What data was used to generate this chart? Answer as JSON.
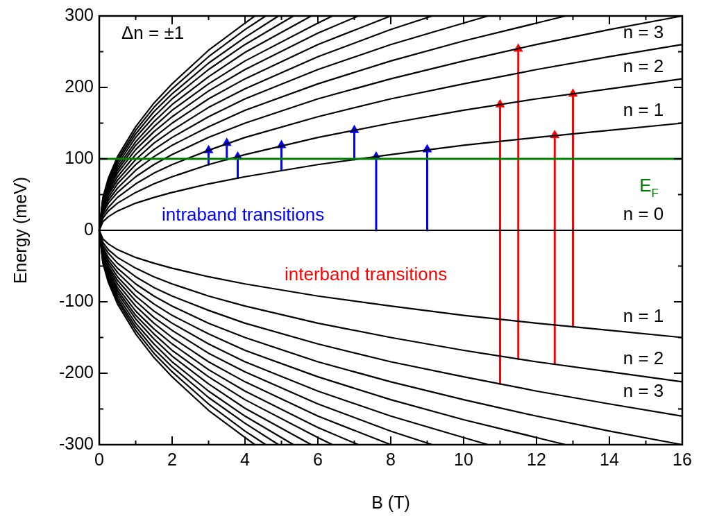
{
  "chart_data": {
    "type": "line",
    "xlabel": "B (T)",
    "ylabel": "Energy (meV)",
    "xlim": [
      0,
      16
    ],
    "ylim": [
      -300,
      300
    ],
    "xticks": [
      0,
      2,
      4,
      6,
      8,
      10,
      12,
      14,
      16
    ],
    "yticks": [
      -300,
      -200,
      -100,
      0,
      100,
      200,
      300
    ],
    "grid": false,
    "legend": false,
    "marker": "none",
    "line_style": "solid",
    "ref_lines": [
      {
        "axis": "y",
        "value": 100,
        "label": "E$_{F}$",
        "color": "#008000"
      }
    ],
    "annotations": [
      "Δn = ±1",
      "intraband transitions",
      "interband transitions",
      "n = 3",
      "n = 2",
      "n = 1",
      "n = 0",
      "n = 1",
      "n = 2",
      "n = 3"
    ],
    "series": [
      {
        "color": "#000000",
        "x": [
          0,
          16
        ],
        "values": [
          0,
          0
        ]
      },
      {
        "color": "#000000",
        "x": [
          16,
          14,
          12,
          10,
          8,
          6,
          4,
          3,
          2,
          1.5,
          1,
          0.5,
          0.25,
          0.1,
          0,
          0.1,
          0.25,
          0.5,
          1,
          1.5,
          2,
          3,
          4,
          6,
          8,
          10,
          12,
          14,
          16
        ],
        "values": [
          150,
          140,
          130,
          119,
          106,
          92,
          75,
          65,
          53,
          46,
          38,
          27,
          19,
          12,
          0,
          -12,
          -19,
          -27,
          -38,
          -46,
          -53,
          -65,
          -75,
          -92,
          -106,
          -119,
          -130,
          -140,
          -150
        ]
      },
      {
        "color": "#000000",
        "x": [
          16,
          14,
          12,
          10,
          8,
          6,
          4,
          3,
          2,
          1.5,
          1,
          0.5,
          0.25,
          0.1,
          0,
          0.1,
          0.25,
          0.5,
          1,
          1.5,
          2,
          3,
          4,
          6,
          8,
          10,
          12,
          14,
          16
        ],
        "values": [
          212,
          198,
          184,
          168,
          150,
          130,
          106,
          92,
          75,
          65,
          53,
          38,
          27,
          17,
          0,
          -17,
          -27,
          -38,
          -53,
          -65,
          -75,
          -92,
          -106,
          -130,
          -150,
          -168,
          -184,
          -198,
          -212
        ]
      },
      {
        "color": "#000000",
        "x": [
          16,
          14,
          12,
          10,
          8,
          6,
          4,
          3,
          2,
          1.5,
          1,
          0.5,
          0.25,
          0.1,
          0,
          0.1,
          0.25,
          0.5,
          1,
          1.5,
          2,
          3,
          4,
          6,
          8,
          10,
          12,
          14,
          16
        ],
        "values": [
          260,
          243,
          225,
          205,
          184,
          159,
          130,
          112,
          92,
          80,
          65,
          46,
          32,
          21,
          0,
          -21,
          -32,
          -46,
          -65,
          -80,
          -92,
          -112,
          -130,
          -159,
          -184,
          -205,
          -225,
          -243,
          -260
        ]
      },
      {
        "color": "#000000",
        "x": [
          16,
          14,
          12,
          10,
          8,
          6,
          4,
          3,
          2,
          1.5,
          1,
          0.5,
          0.25,
          0.1,
          0,
          0.1,
          0.25,
          0.5,
          1,
          1.5,
          2,
          3,
          4,
          6,
          8,
          10,
          12,
          14,
          16
        ],
        "values": [
          300,
          281,
          260,
          237,
          212,
          184,
          150,
          130,
          106,
          92,
          75,
          53,
          38,
          24,
          0,
          -24,
          -38,
          -53,
          -75,
          -92,
          -106,
          -130,
          -150,
          -184,
          -212,
          -237,
          -260,
          -281,
          -300
        ]
      },
      {
        "color": "#000000",
        "x": [
          12.8,
          12,
          10,
          8,
          6,
          4,
          3,
          2,
          1.5,
          1,
          0.5,
          0.25,
          0.1,
          0,
          0.1,
          0.25,
          0.5,
          1,
          1.5,
          2,
          3,
          4,
          6,
          8,
          10,
          12,
          12.8
        ],
        "values": [
          300,
          290,
          265,
          237,
          205,
          168,
          145,
          119,
          103,
          84,
          59,
          42,
          27,
          0,
          -27,
          -42,
          -59,
          -84,
          -103,
          -119,
          -145,
          -168,
          -205,
          -237,
          -265,
          -290,
          -300
        ]
      },
      {
        "color": "#000000",
        "x": [
          10.67,
          10,
          8,
          6,
          4,
          3,
          2,
          1.5,
          1,
          0.5,
          0.25,
          0.1,
          0,
          0.1,
          0.25,
          0.5,
          1,
          1.5,
          2,
          3,
          4,
          6,
          8,
          10,
          10.67
        ],
        "values": [
          300,
          290,
          260,
          225,
          184,
          159,
          130,
          113,
          92,
          65,
          46,
          29,
          0,
          -29,
          -46,
          -65,
          -92,
          -113,
          -130,
          -159,
          -184,
          -225,
          -260,
          -290,
          -300
        ]
      },
      {
        "color": "#000000",
        "x": [
          9.14,
          8,
          6,
          4,
          3,
          2,
          1.5,
          1,
          0.5,
          0.25,
          0.1,
          0,
          0.1,
          0.25,
          0.5,
          1,
          1.5,
          2,
          3,
          4,
          6,
          8,
          9.14
        ],
        "values": [
          300,
          281,
          243,
          198,
          172,
          140,
          122,
          99,
          70,
          50,
          31,
          0,
          -31,
          -50,
          -70,
          -99,
          -122,
          -140,
          -172,
          -198,
          -243,
          -281,
          -300
        ]
      },
      {
        "color": "#000000",
        "x": [
          8,
          6,
          4,
          3,
          2,
          1.5,
          1,
          0.5,
          0.25,
          0.1,
          0,
          0.1,
          0.25,
          0.5,
          1,
          1.5,
          2,
          3,
          4,
          6,
          8
        ],
        "values": [
          300,
          260,
          212,
          184,
          150,
          130,
          106,
          75,
          53,
          34,
          0,
          -34,
          -53,
          -75,
          -106,
          -130,
          -150,
          -184,
          -212,
          -260,
          -300
        ]
      },
      {
        "color": "#000000",
        "x": [
          7.11,
          6,
          4,
          3,
          2,
          1.5,
          1,
          0.5,
          0.25,
          0.1,
          0,
          0.1,
          0.25,
          0.5,
          1,
          1.5,
          2,
          3,
          4,
          6,
          7.11
        ],
        "values": [
          300,
          276,
          225,
          195,
          159,
          138,
          113,
          80,
          56,
          36,
          0,
          -36,
          -56,
          -80,
          -113,
          -138,
          -159,
          -195,
          -225,
          -276,
          -300
        ]
      },
      {
        "color": "#000000",
        "x": [
          6.4,
          6,
          4,
          3,
          2,
          1.5,
          1,
          0.5,
          0.25,
          0.1,
          0,
          0.1,
          0.25,
          0.5,
          1,
          1.5,
          2,
          3,
          4,
          6,
          6.4
        ],
        "values": [
          300,
          290,
          237,
          205,
          168,
          145,
          119,
          84,
          59,
          38,
          0,
          -38,
          -59,
          -84,
          -119,
          -145,
          -168,
          -205,
          -237,
          -290,
          -300
        ]
      },
      {
        "color": "#000000",
        "x": [
          5.82,
          4,
          3,
          2,
          1.5,
          1,
          0.5,
          0.25,
          0.1,
          0,
          0.1,
          0.25,
          0.5,
          1,
          1.5,
          2,
          3,
          4,
          5.82
        ],
        "values": [
          300,
          249,
          215,
          176,
          152,
          124,
          88,
          62,
          39,
          0,
          -39,
          -62,
          -88,
          -124,
          -152,
          -176,
          -215,
          -249,
          -300
        ]
      },
      {
        "color": "#000000",
        "x": [
          5.33,
          4,
          3,
          2,
          1.5,
          1,
          0.5,
          0.25,
          0.1,
          0,
          0.1,
          0.25,
          0.5,
          1,
          1.5,
          2,
          3,
          4,
          5.33
        ],
        "values": [
          300,
          260,
          225,
          184,
          159,
          130,
          92,
          65,
          41,
          0,
          -41,
          -65,
          -92,
          -130,
          -159,
          -184,
          -225,
          -260,
          -300
        ]
      },
      {
        "color": "#000000",
        "x": [
          4.92,
          4,
          3,
          2,
          1.5,
          1,
          0.5,
          0.25,
          0.1,
          0,
          0.1,
          0.25,
          0.5,
          1,
          1.5,
          2,
          3,
          4,
          4.92
        ],
        "values": [
          300,
          270,
          234,
          191,
          166,
          135,
          96,
          68,
          43,
          0,
          -43,
          -68,
          -96,
          -135,
          -166,
          -191,
          -234,
          -270,
          -300
        ]
      },
      {
        "color": "#000000",
        "x": [
          4.57,
          4,
          3,
          2,
          1.5,
          1,
          0.5,
          0.25,
          0.1,
          0,
          0.1,
          0.25,
          0.5,
          1,
          1.5,
          2,
          3,
          4,
          4.57
        ],
        "values": [
          300,
          281,
          243,
          198,
          172,
          140,
          99,
          70,
          44,
          0,
          -44,
          -70,
          -99,
          -140,
          -172,
          -198,
          -243,
          -281,
          -300
        ]
      },
      {
        "color": "#000000",
        "x": [
          4.27,
          4,
          3,
          2,
          1.5,
          1,
          0.5,
          0.25,
          0.1,
          0,
          0.1,
          0.25,
          0.5,
          1,
          1.5,
          2,
          3,
          4,
          4.27
        ],
        "values": [
          300,
          290,
          252,
          205,
          178,
          145,
          103,
          73,
          46,
          0,
          -46,
          -73,
          -103,
          -145,
          -178,
          -205,
          -252,
          -290,
          -300
        ]
      },
      {
        "color": "#0000ff",
        "marker": "triangle",
        "x": [
          3,
          3
        ],
        "values": [
          92,
          112
        ]
      },
      {
        "color": "#0000ff",
        "marker": "triangle",
        "x": [
          3.5,
          3.5
        ],
        "values": [
          99,
          122
        ]
      },
      {
        "color": "#0000ff",
        "marker": "triangle",
        "x": [
          3.8,
          3.8
        ],
        "values": [
          73,
          103
        ]
      },
      {
        "color": "#0000ff",
        "marker": "triangle",
        "x": [
          5,
          5
        ],
        "values": [
          84,
          119
        ]
      },
      {
        "color": "#0000ff",
        "marker": "triangle",
        "x": [
          7,
          7
        ],
        "values": [
          99,
          140
        ]
      },
      {
        "color": "#0000ff",
        "marker": "triangle",
        "x": [
          7.6,
          7.6
        ],
        "values": [
          0,
          103
        ]
      },
      {
        "color": "#0000ff",
        "marker": "triangle",
        "x": [
          9,
          9
        ],
        "values": [
          0,
          113
        ]
      },
      {
        "color": "#ff0000",
        "marker": "triangle",
        "x": [
          11,
          11
        ],
        "values": [
          -215,
          176
        ]
      },
      {
        "color": "#ff0000",
        "marker": "triangle",
        "x": [
          11.5,
          11.5
        ],
        "values": [
          -180,
          254
        ]
      },
      {
        "color": "#ff0000",
        "marker": "triangle",
        "x": [
          12.5,
          12.5
        ],
        "values": [
          -187,
          133
        ]
      },
      {
        "color": "#ff0000",
        "marker": "triangle",
        "x": [
          13,
          13
        ],
        "values": [
          -135,
          191
        ]
      }
    ]
  }
}
